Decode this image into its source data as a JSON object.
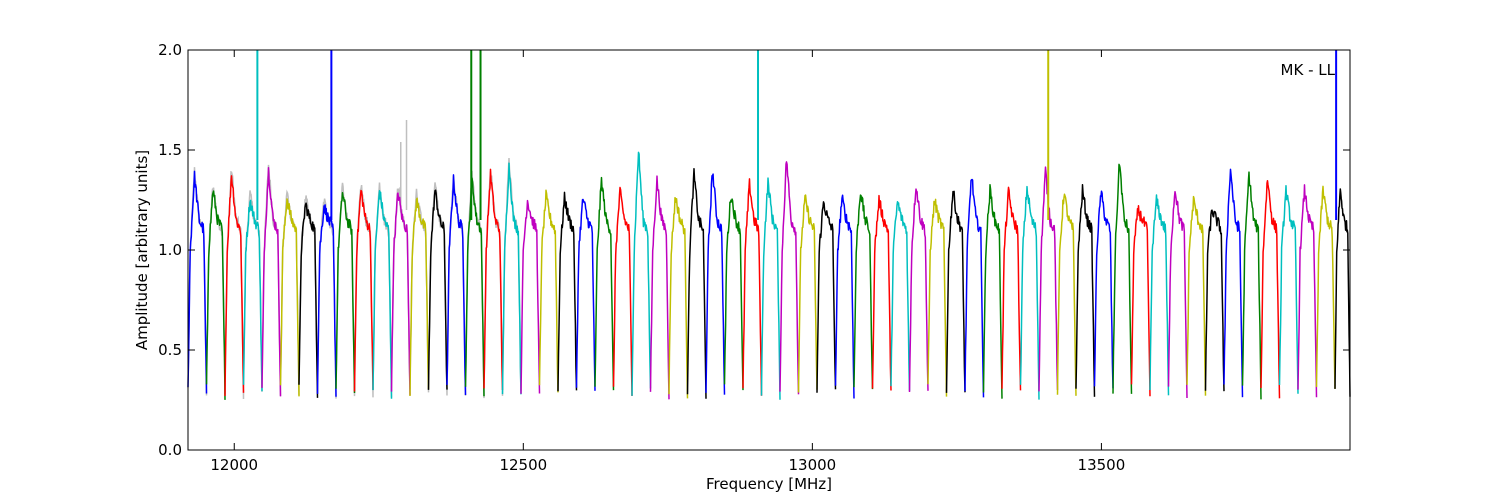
{
  "chart_data": {
    "type": "line",
    "title": "",
    "xlabel": "Frequency [MHz]",
    "ylabel": "Amplitude [arbitrary units]",
    "annotation": "MK - LL",
    "xlim": [
      11920,
      13930
    ],
    "ylim": [
      0.0,
      2.0
    ],
    "xticks": [
      12000,
      12500,
      13000,
      13500
    ],
    "yticks": [
      0.0,
      0.5,
      1.0,
      1.5,
      2.0
    ],
    "ytick_labels": [
      "0.0",
      "0.5",
      "1.0",
      "1.5",
      "2.0"
    ],
    "grid": false,
    "colors": [
      "#0000ff",
      "#008000",
      "#ff0000",
      "#00bfbf",
      "#bf00bf",
      "#bfbf00",
      "#000000"
    ],
    "background_color": "#bfbfbf",
    "channel_width_mhz": 32,
    "channel_start_mhz": 11920,
    "channel_peaks": [
      1.37,
      1.3,
      1.38,
      1.25,
      1.4,
      1.26,
      1.23,
      1.22,
      1.29,
      1.3,
      1.3,
      1.29,
      1.25,
      1.3,
      1.35,
      1.35,
      1.38,
      1.42,
      1.25,
      1.27,
      1.26,
      1.26,
      1.35,
      1.29,
      1.5,
      1.35,
      1.27,
      1.38,
      1.4,
      1.28,
      1.33,
      1.34,
      1.46,
      1.26,
      1.24,
      1.26,
      1.3,
      1.25,
      1.24,
      1.33,
      1.25,
      1.3,
      1.38,
      1.3,
      1.29,
      1.31,
      1.4,
      1.29,
      1.3,
      1.29,
      1.45,
      1.2,
      1.25,
      1.31,
      1.25,
      1.2,
      1.41,
      1.38,
      1.36,
      1.3,
      1.3,
      1.3,
      1.3
    ],
    "spikes": [
      {
        "x": 12040,
        "y": 2.0,
        "color": "#00bfbf"
      },
      {
        "x": 12168,
        "y": 2.0,
        "color": "#0000ff"
      },
      {
        "x": 12410,
        "y": 2.0,
        "color": "#008000"
      },
      {
        "x": 12426,
        "y": 2.0,
        "color": "#008000"
      },
      {
        "x": 12906,
        "y": 2.0,
        "color": "#00bfbf"
      },
      {
        "x": 13408,
        "y": 2.0,
        "color": "#bfbf00"
      },
      {
        "x": 13906,
        "y": 2.0,
        "color": "#0000ff"
      }
    ],
    "background_spikes": [
      {
        "x": 12288,
        "y": 1.54
      },
      {
        "x": 12298,
        "y": 1.65
      }
    ]
  }
}
